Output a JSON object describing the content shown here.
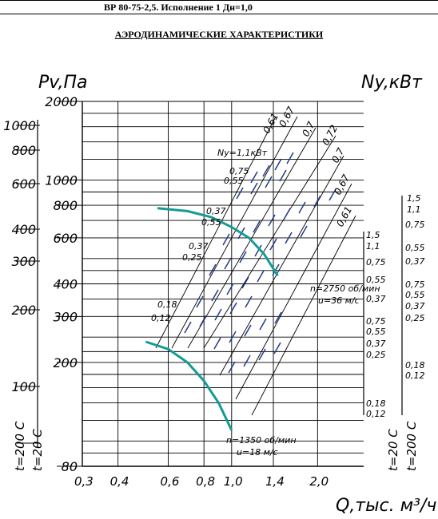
{
  "header": {
    "title": "ВР 80-75-2,5. Исполнение 1 Дн=1,0"
  },
  "subtitle": "АЭРОДИНАМИЧЕСКИЕ ХАРАКТЕРИСТИКИ",
  "colors": {
    "grid": "#000000",
    "curve": "#149b94",
    "mark": "#1f3a8a"
  },
  "chart_data": {
    "type": "line",
    "ylabel_left": "Pv,Па",
    "ylabel_right": "Ny,кВт",
    "xlabel": "Q,тыс. м³/ч",
    "x_scale": "log",
    "y_scale": "log",
    "x_ticks": [
      "0,3",
      "0,4",
      "0,6",
      "0,8",
      "1,0",
      "1,4",
      "2,0"
    ],
    "x_tick_values": [
      0.3,
      0.4,
      0.6,
      0.8,
      1.0,
      1.4,
      2.0
    ],
    "y_ticks_20C": [
      "2000",
      "1000",
      "800",
      "600",
      "400",
      "300",
      "200",
      "80"
    ],
    "y_tick_values_20C": [
      2000,
      1000,
      800,
      600,
      400,
      300,
      200,
      80
    ],
    "y_ticks_200C": [
      "1000",
      "800",
      "600",
      "400",
      "300",
      "200",
      "100"
    ],
    "y_tick_values_200C": [
      1000,
      800,
      600,
      400,
      300,
      200,
      100
    ],
    "temperature_labels": {
      "t200": "t=200 С",
      "t20": "t=20 С"
    },
    "efficiency_labels": [
      "0,61",
      "0,67",
      "0,7",
      "0,72",
      "0,7",
      "0,67",
      "0,61"
    ],
    "power_label_top": "Ny=1,1кВт",
    "power_labels_top": [
      "0,75",
      "0,55",
      "0,37",
      "0,55",
      "0,37",
      "0,25",
      "0,18",
      "0,12"
    ],
    "power_scale_right_200C": [
      "1,5",
      "1,1",
      "0,75",
      "0,55",
      "0,37",
      "0,75",
      "0,55",
      "0,37",
      "0,25",
      "0,18",
      "0,12"
    ],
    "power_scale_right_20C": [
      "1,5",
      "1,1",
      "0,75",
      "0,55",
      "0,37",
      "0,75",
      "0,55",
      "0,37",
      "0,25",
      "0,18",
      "0,12"
    ],
    "annotations": {
      "high_speed": "n=2750 об/мин",
      "high_velocity": "u=36 м/с",
      "low_speed": "n=1350 об/мин",
      "low_velocity": "u=18 м/с"
    },
    "series": [
      {
        "name": "n=2750 об/мин",
        "x": [
          0.55,
          0.7,
          0.85,
          1.0,
          1.15,
          1.3,
          1.45
        ],
        "y": [
          780,
          760,
          720,
          660,
          600,
          520,
          430
        ]
      },
      {
        "name": "n=1350 об/мин",
        "x": [
          0.5,
          0.6,
          0.7,
          0.8,
          0.9,
          1.0
        ],
        "y": [
          240,
          225,
          200,
          170,
          140,
          110
        ]
      }
    ]
  }
}
